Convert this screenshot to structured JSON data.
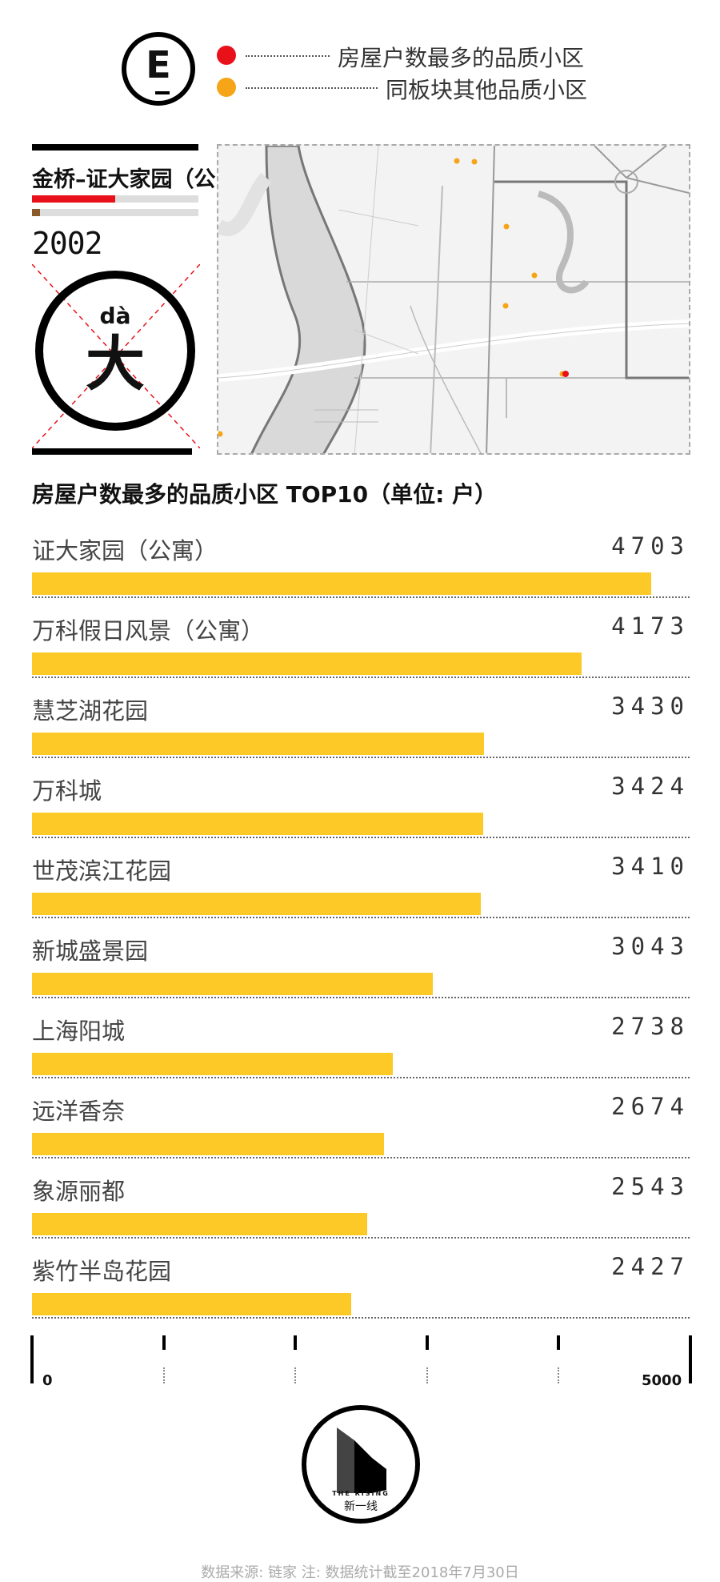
{
  "legend": {
    "logo_letter": "E",
    "items": [
      {
        "label": "房屋户数最多的品质小区",
        "color": "#e8111a"
      },
      {
        "label": "同板块其他品质小区",
        "color": "#f5a517"
      }
    ]
  },
  "profile": {
    "title": "金桥–证大家园（公寓）",
    "year": "2002",
    "pinyin": "dà",
    "hanzi": "大",
    "bar_colors": [
      "#e8111a",
      "#8b5a2b"
    ]
  },
  "chart_data": {
    "type": "bar",
    "title": "房屋户数最多的品质小区 TOP10（单位: 户）",
    "categories": [
      "证大家园（公寓）",
      "万科假日风景（公寓）",
      "慧芝湖花园",
      "万科城",
      "世茂滨江花园",
      "新城盛景园",
      "上海阳城",
      "远洋香奈",
      "象源丽都",
      "紫竹半岛花园"
    ],
    "values": [
      4703,
      4173,
      3430,
      3424,
      3410,
      3043,
      2738,
      2674,
      2543,
      2427
    ],
    "value_labels": [
      "4703",
      "4173",
      "3430",
      "3424",
      "3410",
      "3043",
      "2738",
      "2674",
      "2543",
      "2427"
    ],
    "xlim": [
      0,
      5000
    ],
    "axis_labels": {
      "min": "0",
      "max": "5000"
    },
    "bar_color": "#fcc927"
  },
  "footer": {
    "logo_en": "THE RISING",
    "logo_cn": "新一线",
    "source": "数据来源: 链家   注: 数据统计截至2018年7月30日"
  }
}
